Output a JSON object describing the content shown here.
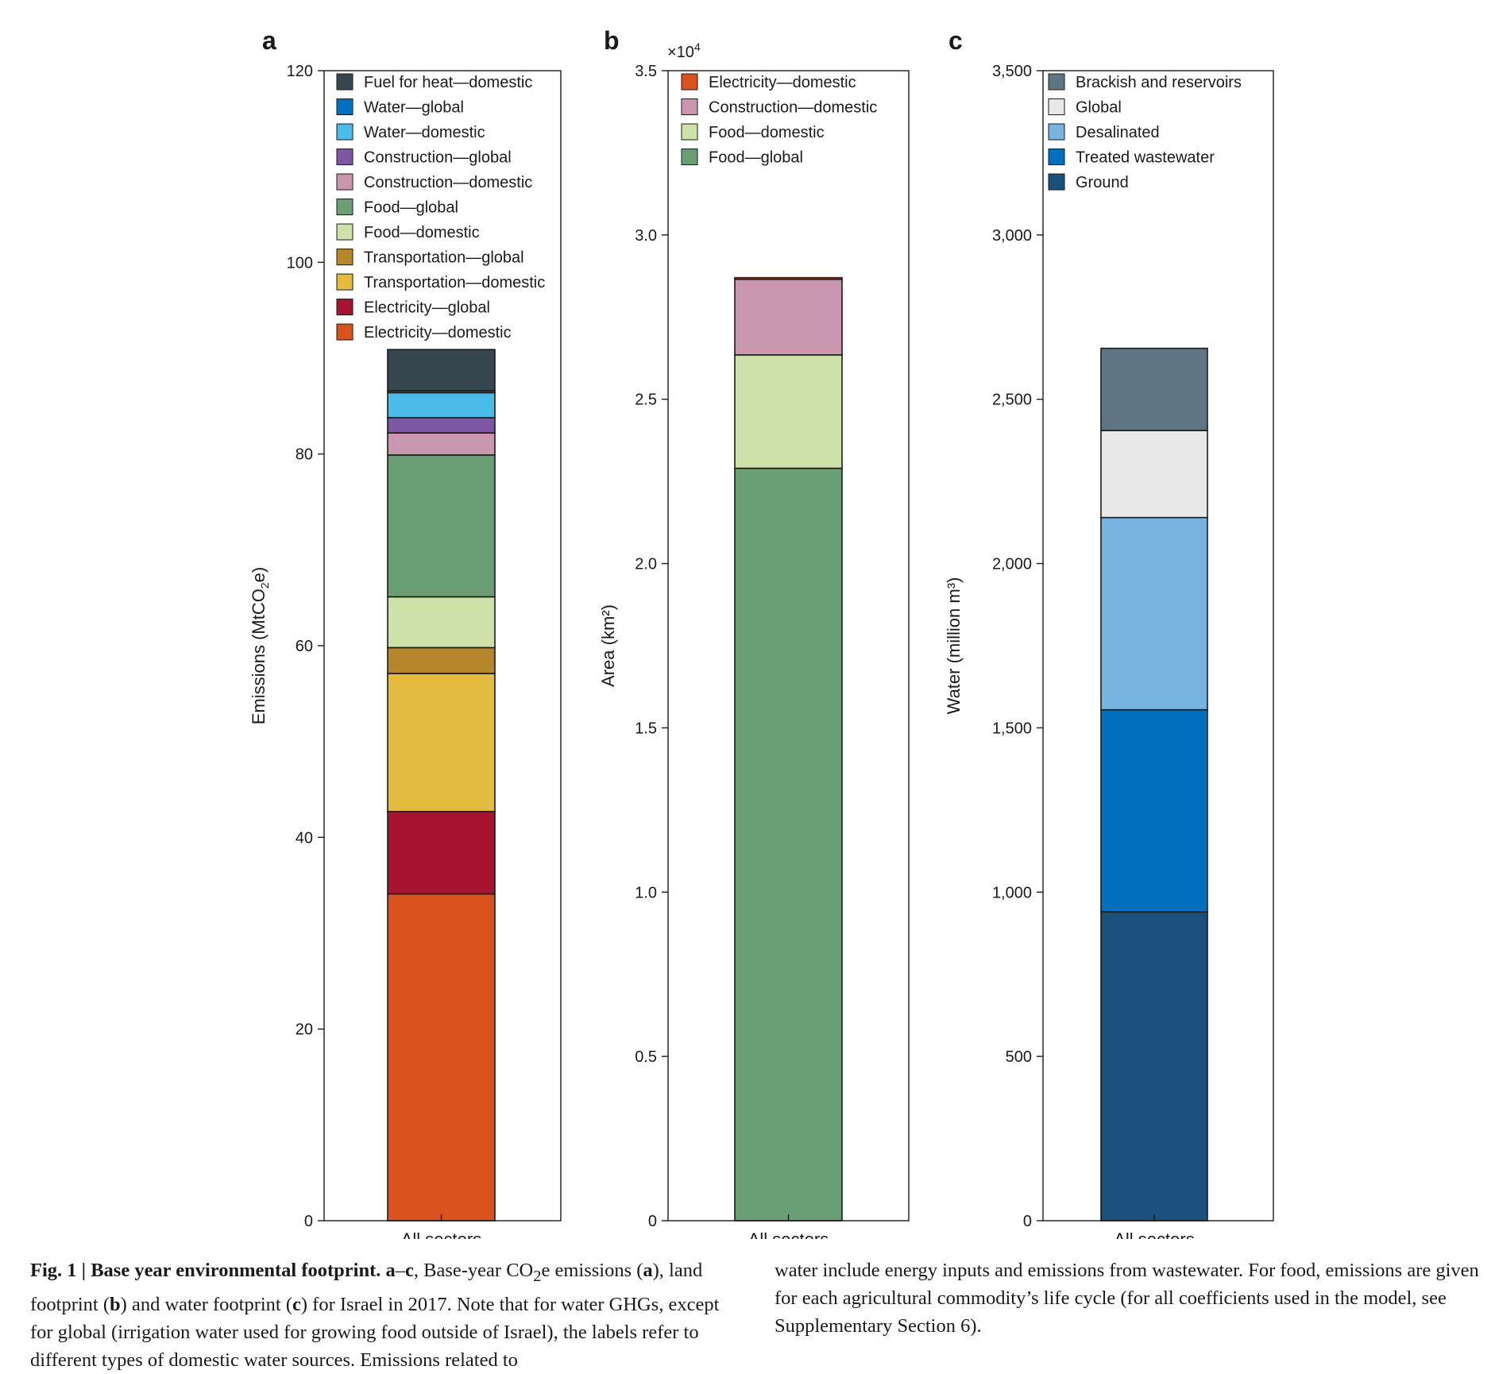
{
  "chart_data": [
    {
      "type": "bar",
      "stacked": true,
      "panel": "a",
      "ylabel": "Emissions (MtCO₂e)",
      "categories": [
        "All sectors"
      ],
      "ylim": [
        0,
        120
      ],
      "yticks": [
        "0",
        "20",
        "40",
        "60",
        "80",
        "100",
        "120"
      ],
      "legend_placement": "top-left",
      "series": [
        {
          "name": "Electricity—domestic",
          "color": "#d9531e",
          "values": [
            34.1
          ]
        },
        {
          "name": "Electricity—global",
          "color": "#a6142f",
          "values": [
            8.6
          ]
        },
        {
          "name": "Transportation—domestic",
          "color": "#e3bb3f",
          "values": [
            14.4
          ]
        },
        {
          "name": "Transportation—global",
          "color": "#b5862b",
          "values": [
            2.7
          ]
        },
        {
          "name": "Food—domestic",
          "color": "#cde1a8",
          "values": [
            5.3
          ]
        },
        {
          "name": "Food—global",
          "color": "#6b9e74",
          "values": [
            14.8
          ]
        },
        {
          "name": "Construction—domestic",
          "color": "#c897ad",
          "values": [
            2.3
          ]
        },
        {
          "name": "Construction—global",
          "color": "#7d57a1",
          "values": [
            1.6
          ]
        },
        {
          "name": "Water—domestic",
          "color": "#4bbbe9",
          "values": [
            2.6
          ]
        },
        {
          "name": "Water—global",
          "color": "#0070c0",
          "values": [
            0.2
          ]
        },
        {
          "name": "Fuel for heat—domestic",
          "color": "#37474f",
          "values": [
            4.3
          ]
        }
      ]
    },
    {
      "type": "bar",
      "stacked": true,
      "panel": "b",
      "ylabel": "Area (km²)",
      "multiplier": "×10⁴",
      "categories": [
        "All sectors"
      ],
      "ylim": [
        0,
        3.5
      ],
      "yticks": [
        "0",
        "0.5",
        "1.0",
        "1.5",
        "2.0",
        "2.5",
        "3.0",
        "3.5"
      ],
      "legend_placement": "top-left",
      "series": [
        {
          "name": "Food—global",
          "color": "#6b9e74",
          "values": [
            2.29
          ]
        },
        {
          "name": "Food—domestic",
          "color": "#cde1a8",
          "values": [
            0.345
          ]
        },
        {
          "name": "Construction—domestic",
          "color": "#c897ad",
          "values": [
            0.23
          ]
        },
        {
          "name": "Electricity—domestic",
          "color": "#d9531e",
          "values": [
            0.005
          ]
        }
      ],
      "legend_order": [
        "Electricity—domestic",
        "Construction—domestic",
        "Food—domestic",
        "Food—global"
      ]
    },
    {
      "type": "bar",
      "stacked": true,
      "panel": "c",
      "ylabel": "Water (million m³)",
      "categories": [
        "All sectors"
      ],
      "ylim": [
        0,
        3500
      ],
      "yticks": [
        "0",
        "500",
        "1,000",
        "1,500",
        "2,000",
        "2,500",
        "3,000",
        "3,500"
      ],
      "legend_placement": "top-left",
      "series": [
        {
          "name": "Ground",
          "color": "#1b4f7c",
          "values": [
            940
          ]
        },
        {
          "name": "Treated wastewater",
          "color": "#0070bd",
          "values": [
            615
          ]
        },
        {
          "name": "Desalinated",
          "color": "#77b4e0",
          "values": [
            585
          ]
        },
        {
          "name": "Global",
          "color": "#e8e8e8",
          "values": [
            265
          ]
        },
        {
          "name": "Brackish and reservoirs",
          "color": "#5e7682",
          "values": [
            250
          ]
        }
      ],
      "legend_order": [
        "Brackish and reservoirs",
        "Global",
        "Desalinated",
        "Treated wastewater",
        "Ground"
      ]
    }
  ],
  "caption": {
    "fig_label": "Fig. 1",
    "separator": " | ",
    "title": "Base year environmental footprint.",
    "range_a": "a",
    "range_dash": "–",
    "range_c": "c",
    "text_1": ", Base-year CO",
    "sub_2": "2",
    "text_2": "e emissions (",
    "ref_a": "a",
    "text_3": "), land footprint (",
    "ref_b": "b",
    "text_4": ") and water footprint (",
    "ref_c": "c",
    "text_5": ") for Israel in 2017. Note that for water GHGs, except for global (irrigation water used for growing food outside of Israel), the labels refer to different types of domestic water sources. Emissions related to",
    "right_text": "water include energy inputs and emissions from wastewater. For food, emissions are given for each agricultural commodity’s life cycle (for all coefficients used in the model, see Supplementary Section 6)."
  }
}
